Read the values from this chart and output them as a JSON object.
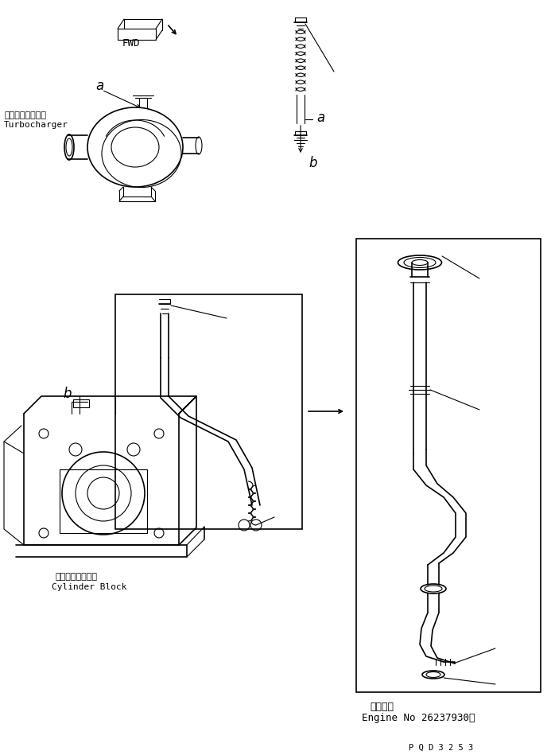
{
  "bg_color": "#ffffff",
  "line_color": "#000000",
  "bottom_text_jp": "適用号機",
  "bottom_text_en": "Engine No 26237930～",
  "part_code": "P Q D 3 2 5 3",
  "turbo_label_jp": "ターボチャージャ",
  "turbo_label_en": "Turbocharger",
  "cylinder_label_jp": "シリンダブロック",
  "cylinder_label_en": "Cylinder Block",
  "fwd_label": "FWD"
}
